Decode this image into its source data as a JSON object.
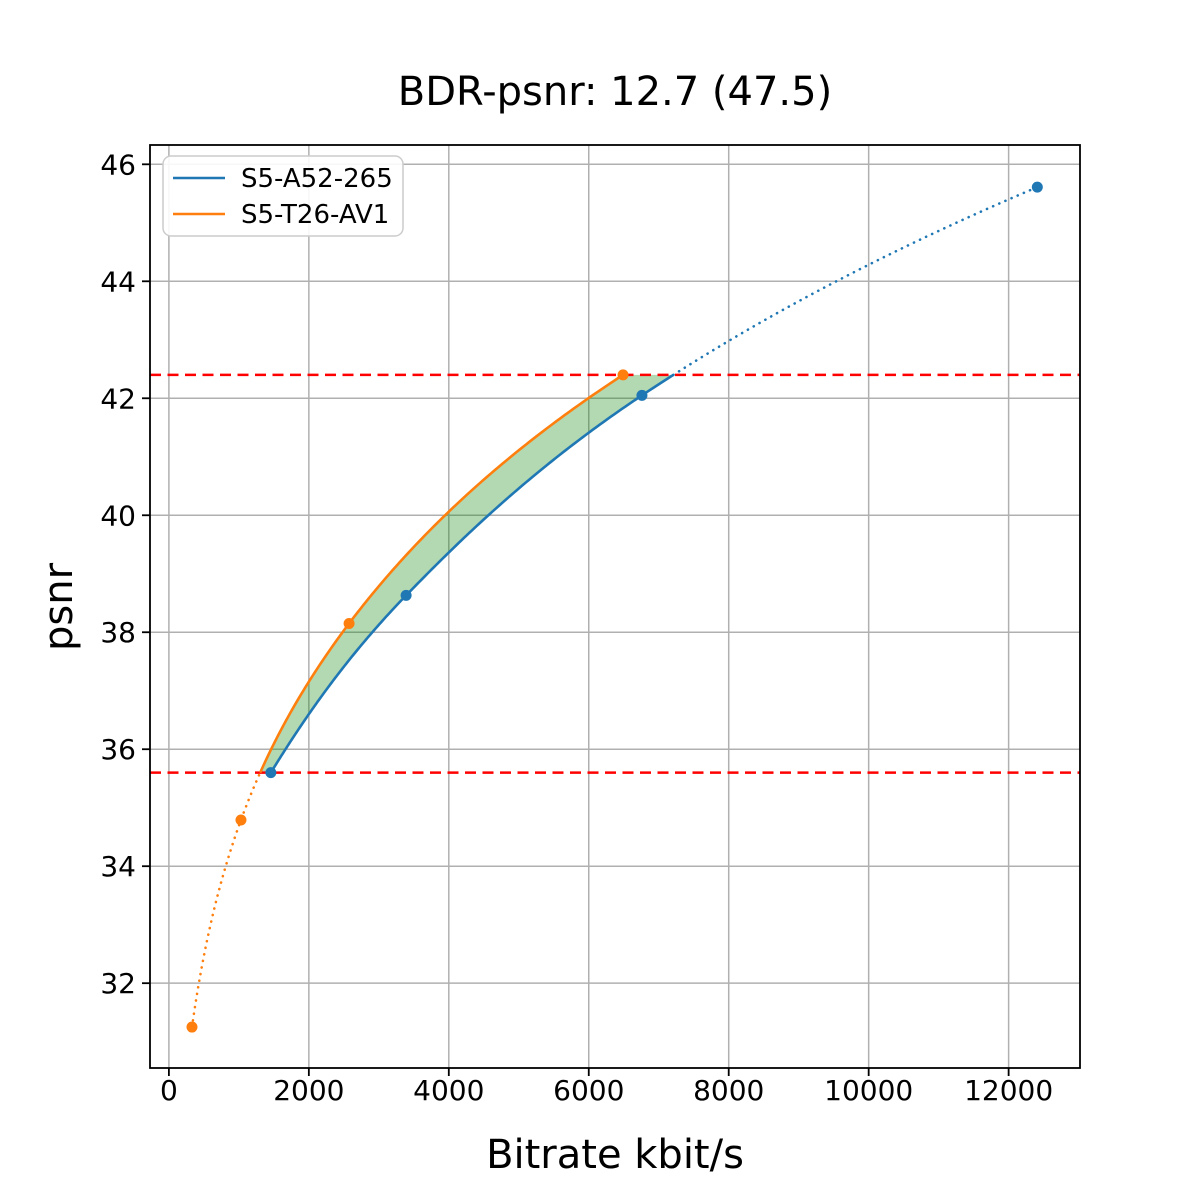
{
  "chart_data": {
    "type": "line",
    "title": "BDR-psnr: 12.7 (47.5)",
    "xlabel": "Bitrate kbit/s",
    "ylabel": "psnr",
    "xlim": [
      -270,
      13020
    ],
    "ylim": [
      30.55,
      46.33
    ],
    "x_ticks": [
      0,
      2000,
      4000,
      6000,
      8000,
      10000,
      12000
    ],
    "y_ticks": [
      32,
      34,
      36,
      38,
      40,
      42,
      44,
      46
    ],
    "grid": true,
    "grid_color": "#b0b0b0",
    "legend_position": "upper left",
    "interpolation": "monotone-cubic-on-log10-x",
    "series": [
      {
        "name": "S5-A52-265",
        "color": "#1f77b4",
        "points": [
          [
            1457,
            35.6
          ],
          [
            3390,
            38.63
          ],
          [
            6760,
            42.05
          ],
          [
            12410,
            45.61
          ]
        ]
      },
      {
        "name": "S5-T26-AV1",
        "color": "#ff7f0e",
        "points": [
          [
            330,
            31.25
          ],
          [
            1030,
            34.79
          ],
          [
            2575,
            38.15
          ],
          [
            6490,
            42.4
          ]
        ]
      }
    ],
    "overlap_hlines": {
      "values": [
        35.6,
        42.4
      ],
      "color": "#ff0000",
      "style": "dashed"
    },
    "fill_between": {
      "color": "#008000",
      "opacity": 0.3,
      "psnr_range": [
        35.6,
        42.4
      ]
    },
    "solid_psnr_range": [
      35.6,
      42.4
    ],
    "bdr_value": "12.7",
    "bdr_reference": "47.5"
  }
}
